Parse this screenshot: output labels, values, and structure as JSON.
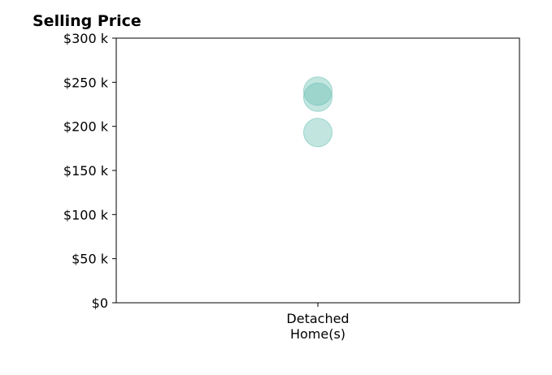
{
  "chart_data": {
    "type": "scatter",
    "title": "Selling Price",
    "xlabel": "",
    "ylabel": "",
    "categories": [
      [
        "Detached",
        "Home(s)"
      ]
    ],
    "ylim": [
      0,
      300000
    ],
    "yticks": [
      0,
      50000,
      100000,
      150000,
      200000,
      250000,
      300000
    ],
    "ytick_labels": [
      "$0",
      "$50 k",
      "$100 k",
      "$150 k",
      "$200 k",
      "$250 k",
      "$300 k"
    ],
    "series": [
      {
        "values": [
          {
            "category": 0,
            "y": 240000
          },
          {
            "category": 0,
            "y": 233000
          },
          {
            "category": 0,
            "y": 193000
          }
        ]
      }
    ],
    "point_color": "#66bfb2",
    "point_opacity": 0.4,
    "grid": false,
    "legend": "none"
  }
}
